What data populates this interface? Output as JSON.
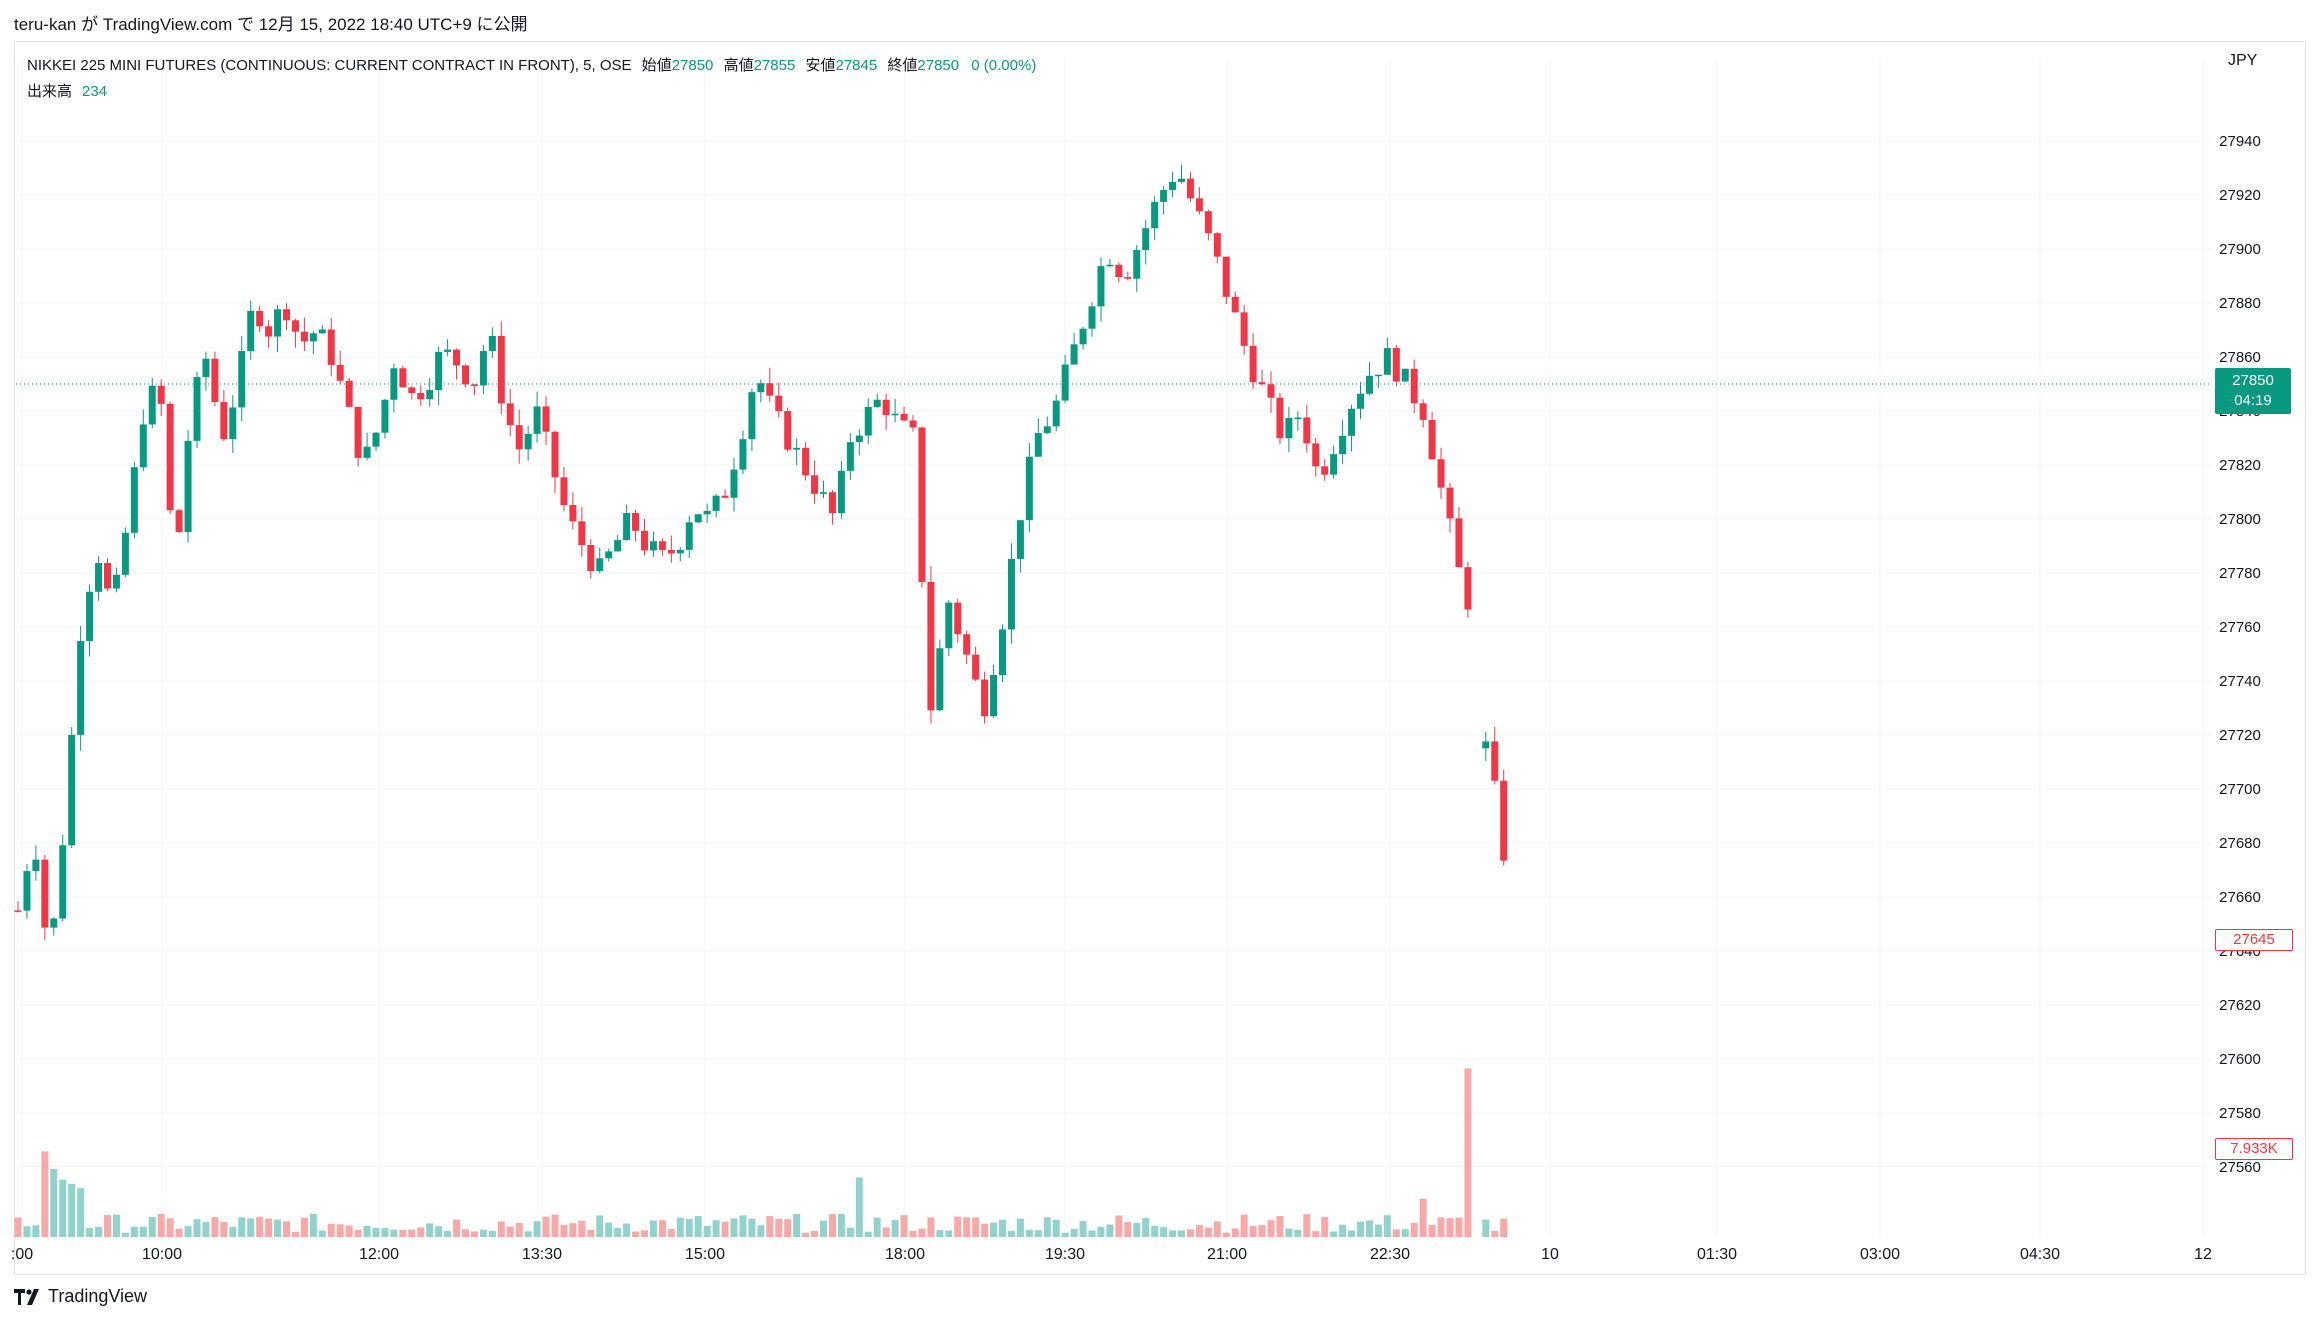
{
  "header": {
    "publish_text": "teru-kan が TradingView.com で 12月 15, 2022 18:40 UTC+9 に公開"
  },
  "legend": {
    "symbol": "NIKKEI 225 MINI FUTURES (CONTINUOUS: CURRENT CONTRACT IN FRONT), 5, OSE",
    "open_label": "始値",
    "open_value": "27850",
    "high_label": "高値",
    "high_value": "27855",
    "low_label": "安値",
    "low_value": "27845",
    "close_label": "終値",
    "close_value": "27850",
    "change": "0 (0.00%)"
  },
  "volume_legend": {
    "label": "出来高",
    "value": "234"
  },
  "currency": "JPY",
  "last_price_badge": {
    "price": "27850",
    "countdown": "04:19"
  },
  "low_price_badge": "27645",
  "volume_badge": "7.933K",
  "footer": {
    "brand": "TradingView"
  },
  "colors": {
    "up": "#089981",
    "down": "#f23645",
    "up_vol": "#92d2cc",
    "down_vol": "#f7a9a7",
    "grid": "#f0f3fa"
  },
  "chart_data": {
    "type": "candlestick",
    "y_axis": {
      "ylim": [
        27534,
        27970
      ],
      "ticks": [
        27940,
        27920,
        27900,
        27880,
        27860,
        27840,
        27820,
        27800,
        27780,
        27760,
        27740,
        27720,
        27700,
        27680,
        27660,
        27640,
        27620,
        27600,
        27580,
        27560
      ]
    },
    "x_ticks": [
      ":00",
      "10:00",
      "12:00",
      "13:30",
      "15:00",
      "18:00",
      "19:30",
      "21:00",
      "22:30",
      "10",
      "01:30",
      "03:00",
      "04:30",
      "12"
    ],
    "last_price_line": 27850,
    "segments": [
      {
        "start": 0,
        "waypoints": [
          27655,
          27685,
          27635,
          27690,
          27760,
          27790,
          27765,
          27800,
          27840,
          27850,
          27780,
          27840,
          27860,
          27830,
          27850,
          27880,
          27870,
          27880,
          27865,
          27870,
          27860,
          27840,
          27820,
          27835,
          27860,
          27845,
          27850,
          27862,
          27858,
          27850,
          27870,
          27840,
          27825,
          27840,
          27820,
          27800,
          27790,
          27780,
          27790,
          27800,
          27790,
          27785,
          27790,
          27805,
          27800,
          27810,
          27830,
          27855,
          27840,
          27830,
          27820,
          27810,
          27800,
          27830,
          27838,
          27845,
          27835,
          27830
        ],
        "count": 100
      },
      {
        "start": 100,
        "waypoints": [
          27830,
          27730,
          27770,
          27750,
          27730,
          27760,
          27800,
          27830,
          27840,
          27860,
          27880,
          27900,
          27890,
          27905,
          27920,
          27930,
          27915,
          27900,
          27880,
          27860,
          27845,
          27830,
          27840,
          27815,
          27830,
          27845,
          27855,
          27860,
          27850,
          27840,
          27810,
          27780,
          27760
        ],
        "count": 63
      },
      {
        "start": 164,
        "waypoints": [
          27715,
          27690,
          27650
        ],
        "count": 3
      }
    ],
    "volume": {
      "big_volume": [
        [
          3,
          4030
        ],
        [
          4,
          3200
        ],
        [
          5,
          2700
        ],
        [
          6,
          2500
        ],
        [
          7,
          2300
        ],
        [
          94,
          2800
        ],
        [
          157,
          1800
        ],
        [
          162,
          7933
        ]
      ],
      "first_bar_label": "7.933K"
    }
  }
}
